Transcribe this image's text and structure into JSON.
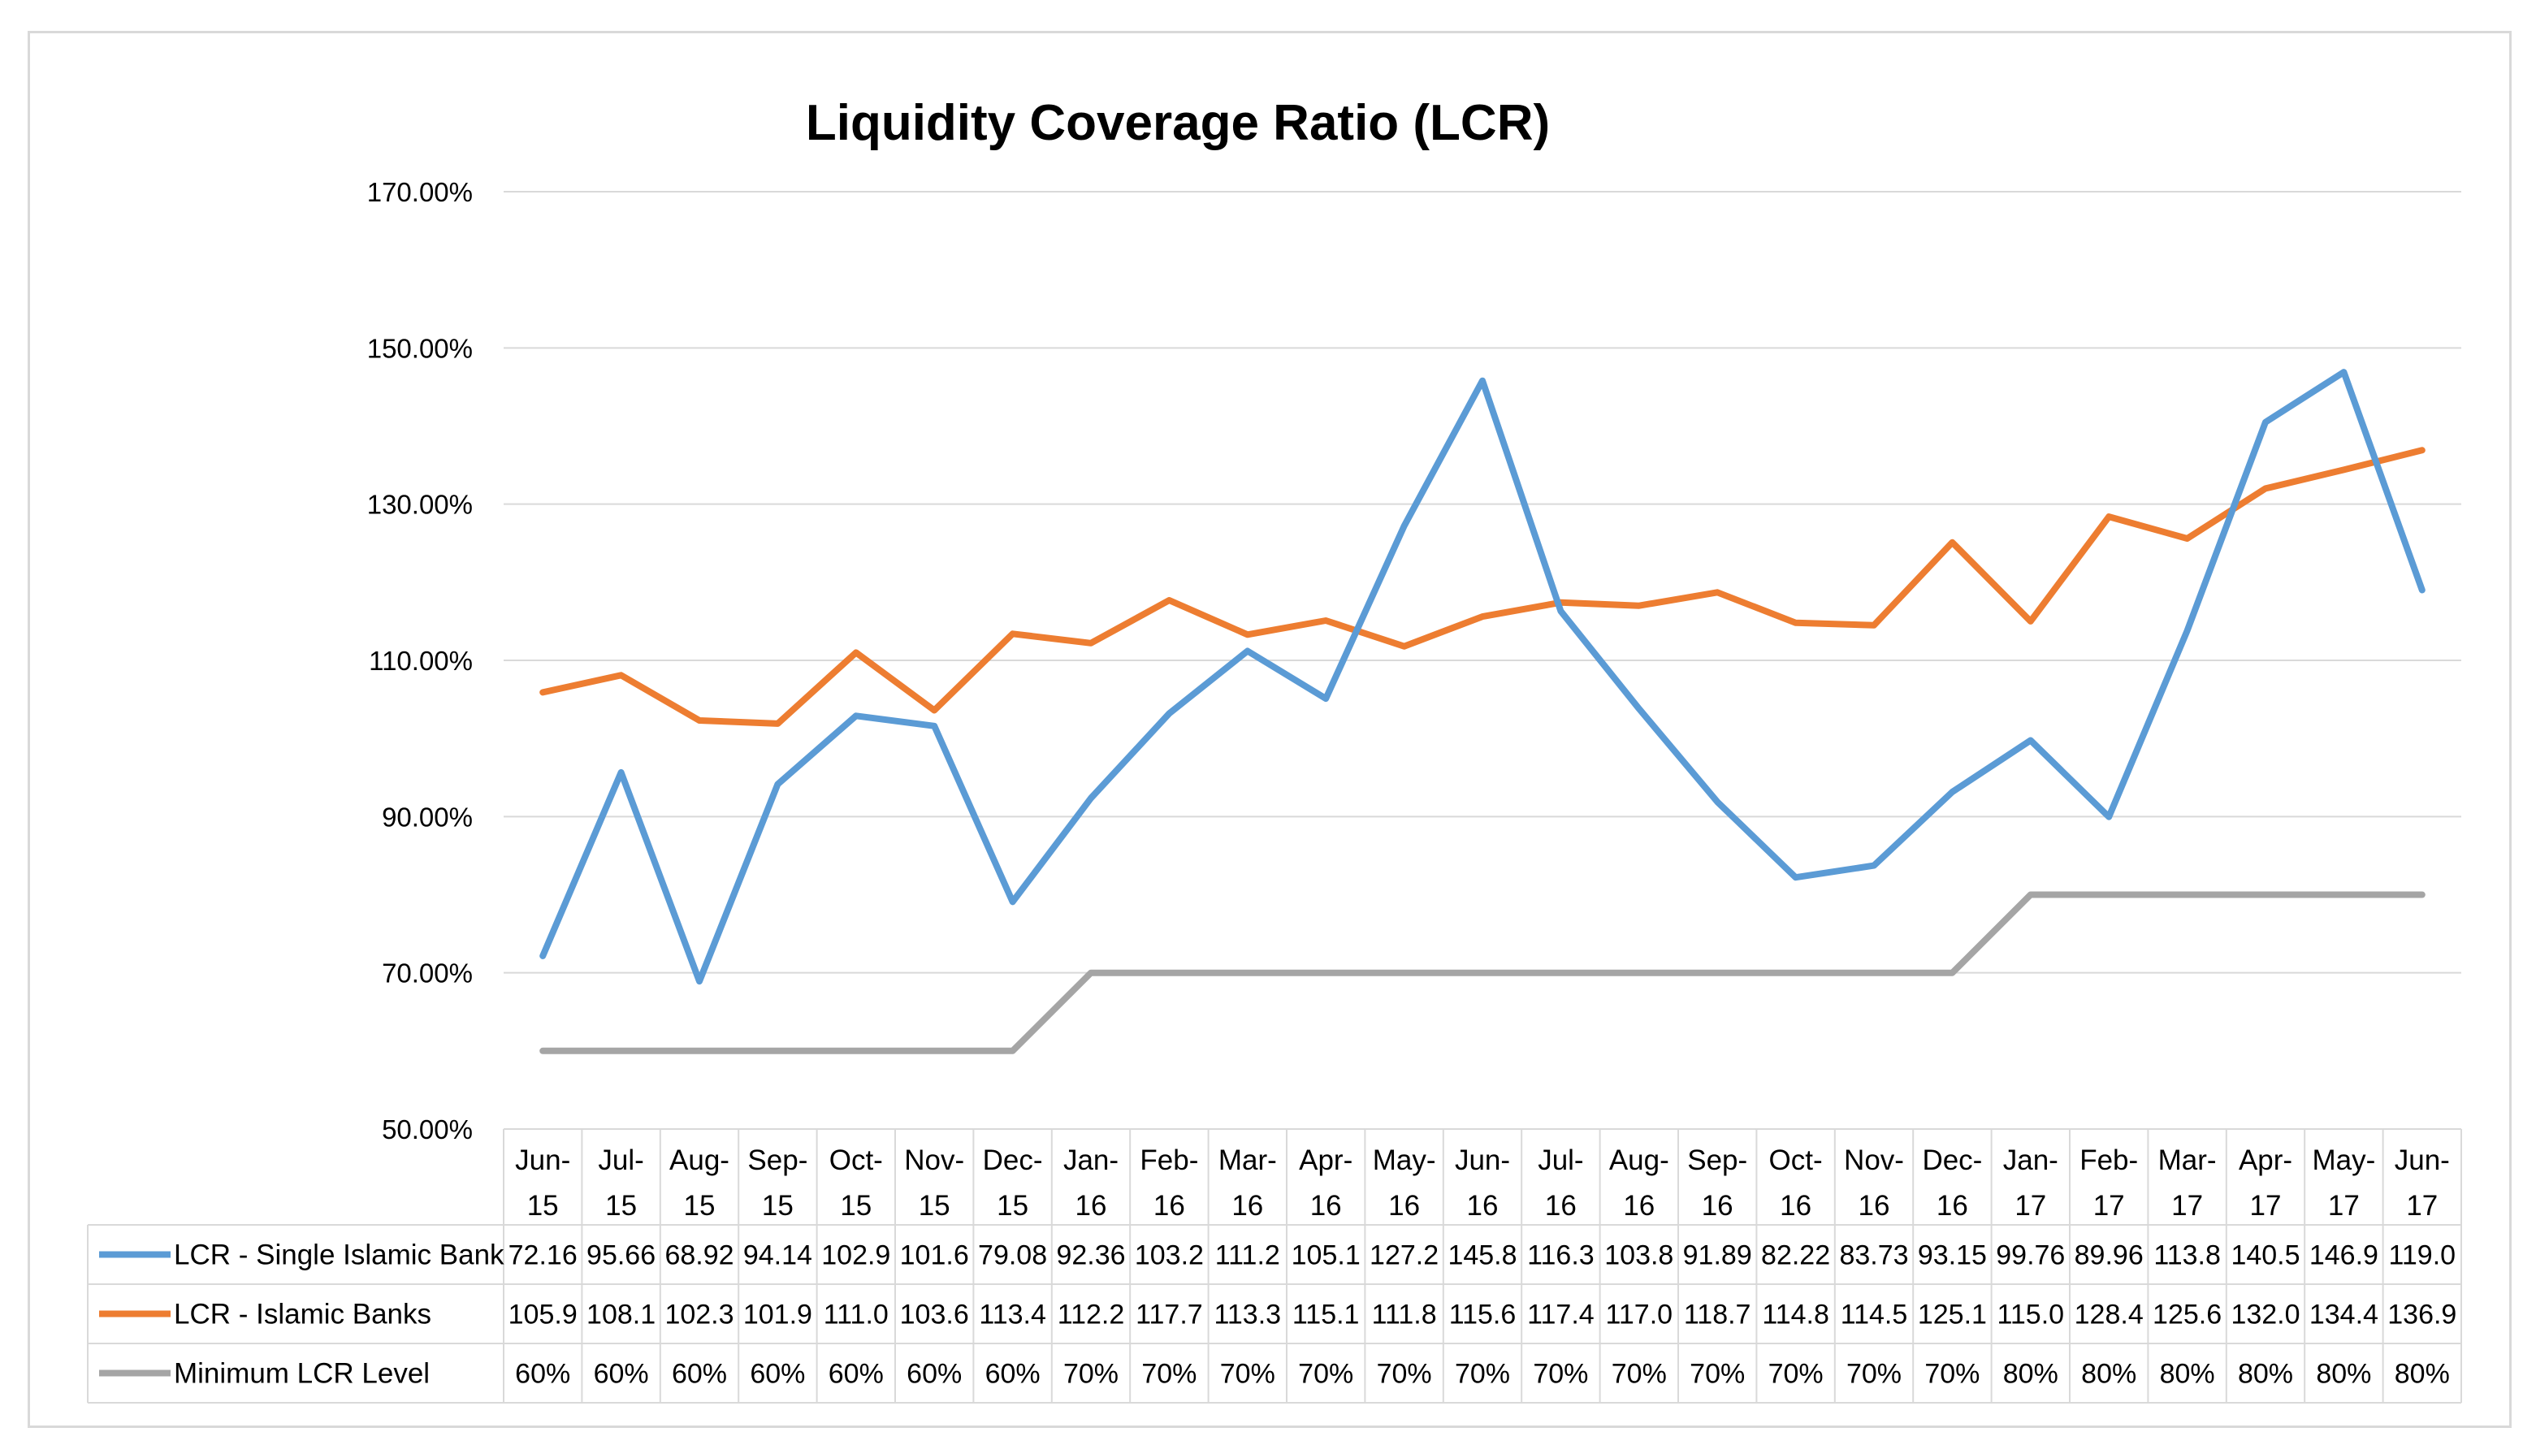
{
  "chart_data": {
    "type": "line",
    "title": "Liquidity Coverage Ratio (LCR)",
    "ylim": [
      50,
      170
    ],
    "yticks": [
      50,
      70,
      90,
      110,
      130,
      150,
      170
    ],
    "ytick_labels": [
      "50.00%",
      "70.00%",
      "90.00%",
      "110.00%",
      "130.00%",
      "150.00%",
      "170.00%"
    ],
    "categories": [
      [
        "Jun-",
        "15"
      ],
      [
        "Jul-",
        "15"
      ],
      [
        "Aug-",
        "15"
      ],
      [
        "Sep-",
        "15"
      ],
      [
        "Oct-",
        "15"
      ],
      [
        "Nov-",
        "15"
      ],
      [
        "Dec-",
        "15"
      ],
      [
        "Jan-",
        "16"
      ],
      [
        "Feb-",
        "16"
      ],
      [
        "Mar-",
        "16"
      ],
      [
        "Apr-",
        "16"
      ],
      [
        "May-",
        "16"
      ],
      [
        "Jun-",
        "16"
      ],
      [
        "Jul-",
        "16"
      ],
      [
        "Aug-",
        "16"
      ],
      [
        "Sep-",
        "16"
      ],
      [
        "Oct-",
        "16"
      ],
      [
        "Nov-",
        "16"
      ],
      [
        "Dec-",
        "16"
      ],
      [
        "Jan-",
        "17"
      ],
      [
        "Feb-",
        "17"
      ],
      [
        "Mar-",
        "17"
      ],
      [
        "Apr-",
        "17"
      ],
      [
        "May-",
        "17"
      ],
      [
        "Jun-",
        "17"
      ]
    ],
    "series": [
      {
        "name": "LCR - Single Islamic Bank",
        "color": "#5b9bd5",
        "values": [
          72.16,
          95.66,
          68.92,
          94.14,
          102.9,
          101.6,
          79.08,
          92.36,
          103.2,
          111.2,
          105.1,
          127.2,
          145.8,
          116.3,
          103.8,
          91.89,
          82.22,
          83.73,
          93.15,
          99.76,
          89.96,
          113.8,
          140.5,
          146.9,
          119.0
        ],
        "labels": [
          "72.16",
          "95.66",
          "68.92",
          "94.14",
          "102.9",
          "101.6",
          "79.08",
          "92.36",
          "103.2",
          "111.2",
          "105.1",
          "127.2",
          "145.8",
          "116.3",
          "103.8",
          "91.89",
          "82.22",
          "83.73",
          "93.15",
          "99.76",
          "89.96",
          "113.8",
          "140.5",
          "146.9",
          "119.0"
        ]
      },
      {
        "name": "LCR - Islamic Banks",
        "color": "#ed7d31",
        "values": [
          105.9,
          108.1,
          102.3,
          101.9,
          111.0,
          103.6,
          113.4,
          112.2,
          117.7,
          113.3,
          115.1,
          111.8,
          115.6,
          117.4,
          117.0,
          118.7,
          114.8,
          114.5,
          125.1,
          115.0,
          128.4,
          125.6,
          132.0,
          134.4,
          136.9
        ],
        "labels": [
          "105.9",
          "108.1",
          "102.3",
          "101.9",
          "111.0",
          "103.6",
          "113.4",
          "112.2",
          "117.7",
          "113.3",
          "115.1",
          "111.8",
          "115.6",
          "117.4",
          "117.0",
          "118.7",
          "114.8",
          "114.5",
          "125.1",
          "115.0",
          "128.4",
          "125.6",
          "132.0",
          "134.4",
          "136.9"
        ]
      },
      {
        "name": "Minimum LCR Level",
        "color": "#a5a5a5",
        "values": [
          60,
          60,
          60,
          60,
          60,
          60,
          60,
          70,
          70,
          70,
          70,
          70,
          70,
          70,
          70,
          70,
          70,
          70,
          70,
          80,
          80,
          80,
          80,
          80,
          80
        ],
        "labels": [
          "60%",
          "60%",
          "60%",
          "60%",
          "60%",
          "60%",
          "60%",
          "70%",
          "70%",
          "70%",
          "70%",
          "70%",
          "70%",
          "70%",
          "70%",
          "70%",
          "70%",
          "70%",
          "70%",
          "80%",
          "80%",
          "80%",
          "80%",
          "80%",
          "80%"
        ]
      }
    ],
    "gridlines": true,
    "legend": "data-table"
  }
}
